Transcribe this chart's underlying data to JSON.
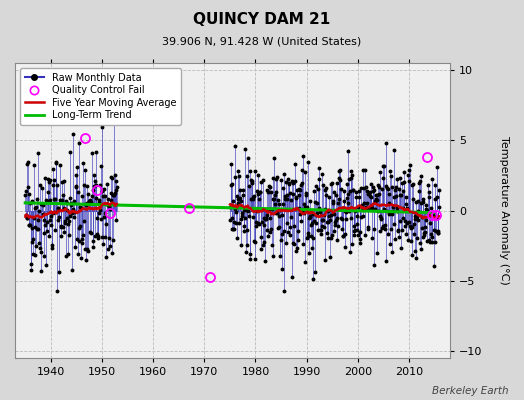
{
  "title": "QUINCY DAM 21",
  "subtitle": "39.906 N, 91.428 W (United States)",
  "ylabel": "Temperature Anomaly (°C)",
  "credit": "Berkeley Earth",
  "xlim": [
    1933,
    2018
  ],
  "ylim": [
    -10.5,
    10.5
  ],
  "yticks": [
    -10,
    -5,
    0,
    5,
    10
  ],
  "xticks": [
    1940,
    1950,
    1960,
    1970,
    1980,
    1990,
    2000,
    2010
  ],
  "bg_color": "#d8d8d8",
  "plot_bg_color": "#f0f0f0",
  "raw_line_color": "#3333bb",
  "raw_marker_color": "#000000",
  "moving_avg_color": "#cc0000",
  "trend_color": "#00bb00",
  "qc_fail_color": "#ff00ff",
  "seed": 42,
  "period1_start": 1935,
  "period1_end": 1952,
  "period2_start": 1975,
  "period2_end": 2015,
  "long_term_trend_y1": 0.55,
  "long_term_trend_y2": -0.15,
  "qc_times": [
    1946.6,
    1949.1,
    1951.5,
    1967.0,
    1971.2,
    2013.6,
    2014.5,
    2015.3
  ],
  "qc_vals": [
    5.2,
    1.5,
    -0.2,
    0.2,
    -4.7,
    3.8,
    -0.3,
    -0.3
  ]
}
